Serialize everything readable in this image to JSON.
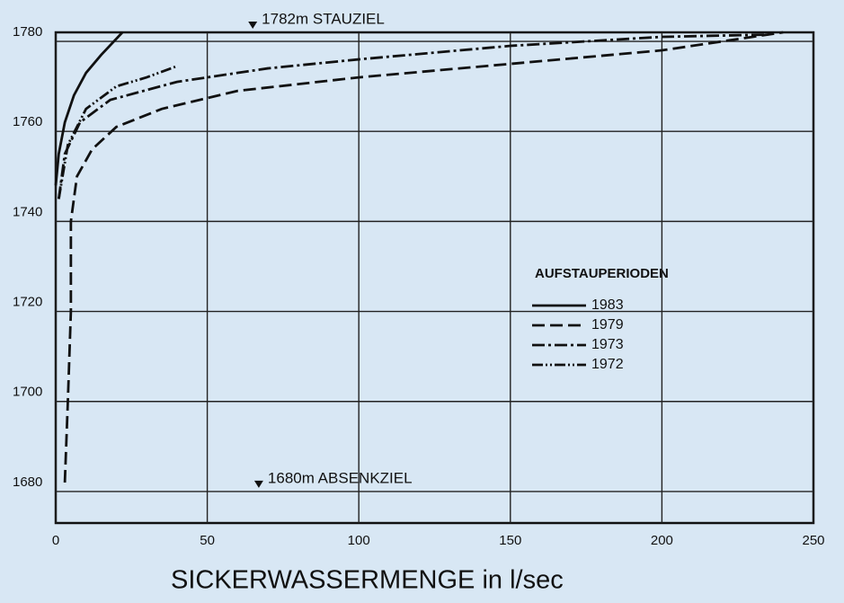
{
  "chart_data": {
    "type": "line",
    "xlabel": "SICKERWASSERMENGE in l/sec",
    "legend_title": "AUFSTAUPERIODEN",
    "annotations": [
      {
        "text": "1782m STAUZIEL",
        "x": 65,
        "y": 1782
      },
      {
        "text": "1680m ABSENKZIEL",
        "x": 67,
        "y": 1680
      }
    ],
    "xlim": [
      0,
      250
    ],
    "xticks": [
      0,
      50,
      100,
      150,
      200,
      250
    ],
    "ylim": [
      1673,
      1782
    ],
    "yticks": [
      1680,
      1700,
      1720,
      1740,
      1760,
      1780
    ],
    "grid": true,
    "series": [
      {
        "name": "1983",
        "color": "#111111",
        "x": [
          0,
          1,
          3,
          6,
          10,
          15,
          22
        ],
        "values": [
          1748,
          1755,
          1762,
          1768,
          1773,
          1777,
          1782
        ]
      },
      {
        "name": "1979",
        "color": "#111111",
        "x": [
          3,
          4,
          5,
          5,
          7,
          12,
          20,
          35,
          60,
          100,
          150,
          200,
          240
        ],
        "values": [
          1682,
          1700,
          1720,
          1740,
          1750,
          1756,
          1761,
          1765,
          1769,
          1772,
          1775,
          1778,
          1782
        ]
      },
      {
        "name": "1973",
        "color": "#111111",
        "x": [
          1,
          3,
          8,
          18,
          40,
          70,
          100,
          150,
          200,
          235
        ],
        "values": [
          1745,
          1755,
          1762,
          1767,
          1771,
          1774,
          1776,
          1779,
          1781,
          1781.5
        ]
      },
      {
        "name": "1972",
        "color": "#111111",
        "x": [
          1,
          4,
          10,
          20,
          30,
          40
        ],
        "values": [
          1745,
          1757,
          1765,
          1770,
          1772,
          1774.5
        ]
      }
    ]
  }
}
